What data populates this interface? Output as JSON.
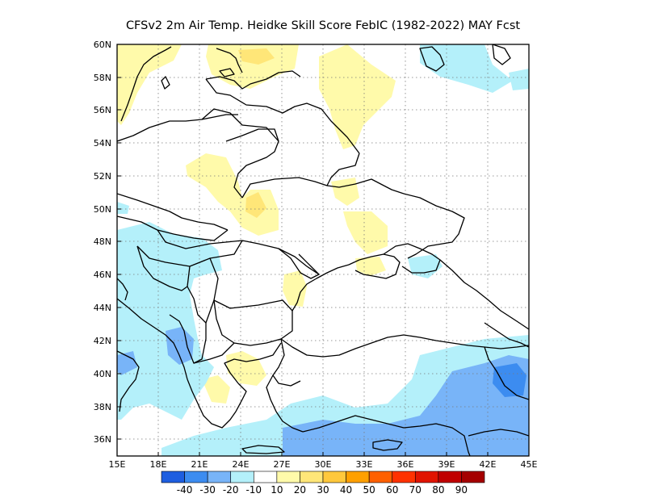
{
  "title": "CFSv2  2m Air Temp. Heidke Skill Score FebIC (1982-2022) MAY Fcst",
  "map": {
    "lon_ticks": [
      "15E",
      "18E",
      "21E",
      "24E",
      "27E",
      "30E",
      "33E",
      "36E",
      "39E",
      "42E",
      "45E"
    ],
    "lat_ticks": [
      "60N",
      "58N",
      "56N",
      "54N",
      "52N",
      "50N",
      "48N",
      "46N",
      "44N",
      "42N",
      "40N",
      "38N",
      "36N"
    ],
    "grid": "dotted",
    "lon_range": [
      15,
      45
    ],
    "lat_range": [
      35,
      60
    ]
  },
  "colorbar": {
    "labels": [
      "-40",
      "-30",
      "-20",
      "-10",
      "10",
      "20",
      "30",
      "40",
      "50",
      "60",
      "70",
      "80",
      "90"
    ],
    "colors": [
      "#1e5ee0",
      "#3c8cf0",
      "#78b4f8",
      "#b4f0fa",
      "#ffffff",
      "#fffaaa",
      "#ffe678",
      "#ffc83c",
      "#ffa000",
      "#ff6000",
      "#ff3200",
      "#e11400",
      "#c00000",
      "#a50000"
    ]
  }
}
